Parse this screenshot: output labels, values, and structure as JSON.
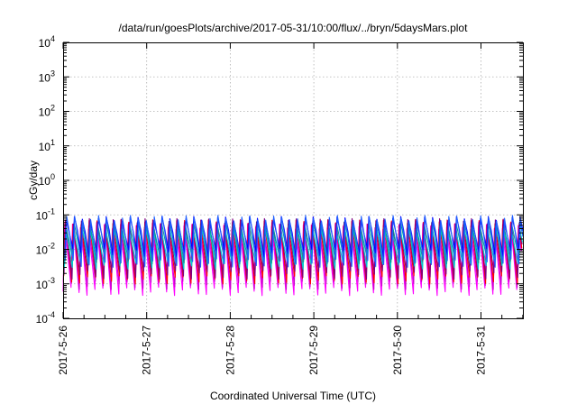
{
  "chart_data": {
    "type": "line",
    "title": "/data/run/goesPlots/archive/2017-05-31/10:00/flux/../bryn/5daysMars.plot",
    "xlabel": "Coordinated Universal Time (UTC)",
    "ylabel": "cGy/day",
    "yscale": "log",
    "ylim": [
      0.0001,
      10000
    ],
    "xlim": [
      "2017-05-26 00:00",
      "2017-05-31 12:00"
    ],
    "grid": true,
    "x_ticks": [
      "2017-5-26",
      "2017-5-27",
      "2017-5-28",
      "2017-5-29",
      "2017-5-30",
      "2017-5-31"
    ],
    "y_ticks": [
      {
        "base": "10",
        "exp": "-4"
      },
      {
        "base": "10",
        "exp": "-3"
      },
      {
        "base": "10",
        "exp": "-2"
      },
      {
        "base": "10",
        "exp": "-1"
      },
      {
        "base": "10",
        "exp": "0"
      },
      {
        "base": "10",
        "exp": "1"
      },
      {
        "base": "10",
        "exp": "2"
      },
      {
        "base": "10",
        "exp": "3"
      },
      {
        "base": "10",
        "exp": "4"
      }
    ],
    "cycles_per_day": 10.5,
    "series": [
      {
        "color": "#ff00ff",
        "peak": 0.045,
        "trough": 0.0006
      },
      {
        "color": "#cc00cc",
        "peak": 0.05,
        "trough": 0.0009
      },
      {
        "color": "#ff0000",
        "peak": 0.06,
        "trough": 0.0013
      },
      {
        "color": "#800080",
        "peak": 0.065,
        "trough": 0.0018
      },
      {
        "color": "#00cccc",
        "peak": 0.04,
        "trough": 0.0035
      },
      {
        "color": "#00a0a0",
        "peak": 0.055,
        "trough": 0.005
      },
      {
        "color": "#0000ff",
        "peak": 0.075,
        "trough": 0.008
      },
      {
        "color": "#2060ff",
        "peak": 0.08,
        "trough": 0.004
      }
    ]
  }
}
